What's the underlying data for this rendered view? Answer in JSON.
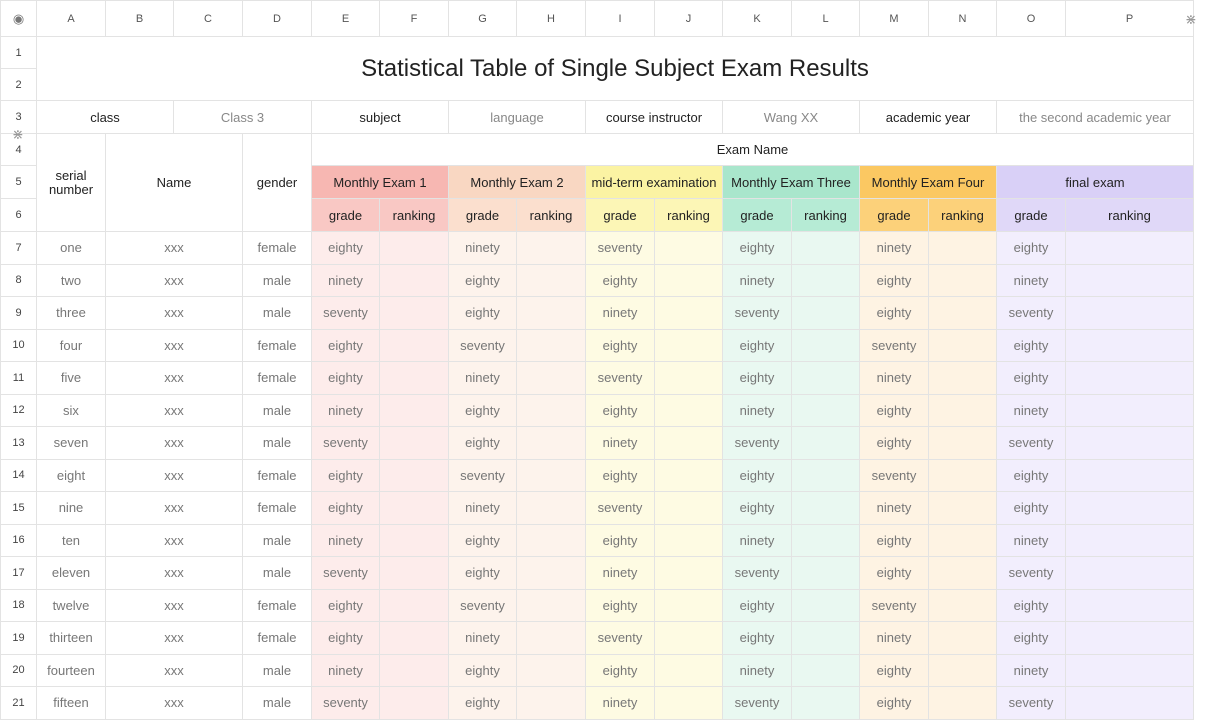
{
  "columns": [
    "A",
    "B",
    "C",
    "D",
    "E",
    "F",
    "G",
    "H",
    "I",
    "J",
    "K",
    "L",
    "M",
    "N",
    "O",
    "P"
  ],
  "row_numbers": [
    "1",
    "2",
    "3",
    "4",
    "5",
    "6",
    "7",
    "8",
    "9",
    "10",
    "11",
    "12",
    "13",
    "14",
    "15",
    "16",
    "17",
    "18",
    "19",
    "20",
    "21"
  ],
  "title": "Statistical Table of Single Subject Exam Results",
  "info": {
    "class_label": "class",
    "class_value": "Class 3",
    "subject_label": "subject",
    "subject_value": "language",
    "instructor_label": "course instructor",
    "instructor_value": "Wang XX",
    "year_label": "academic year",
    "year_value": "the second academic year"
  },
  "headers": {
    "serial": "serial number",
    "name": "Name",
    "gender": "gender",
    "exam_name": "Exam Name",
    "grade": "grade",
    "ranking": "ranking"
  },
  "exams": [
    "Monthly Exam 1",
    "Monthly Exam 2",
    "mid-term examination",
    "Monthly Exam Three",
    "Monthly Exam Four",
    "final exam"
  ],
  "rows": [
    {
      "serial": "one",
      "name": "xxx",
      "gender": "female",
      "grades": [
        "eighty",
        "ninety",
        "seventy",
        "eighty",
        "ninety",
        "eighty"
      ]
    },
    {
      "serial": "two",
      "name": "xxx",
      "gender": "male",
      "grades": [
        "ninety",
        "eighty",
        "eighty",
        "ninety",
        "eighty",
        "ninety"
      ]
    },
    {
      "serial": "three",
      "name": "xxx",
      "gender": "male",
      "grades": [
        "seventy",
        "eighty",
        "ninety",
        "seventy",
        "eighty",
        "seventy"
      ]
    },
    {
      "serial": "four",
      "name": "xxx",
      "gender": "female",
      "grades": [
        "eighty",
        "seventy",
        "eighty",
        "eighty",
        "seventy",
        "eighty"
      ]
    },
    {
      "serial": "five",
      "name": "xxx",
      "gender": "female",
      "grades": [
        "eighty",
        "ninety",
        "seventy",
        "eighty",
        "ninety",
        "eighty"
      ]
    },
    {
      "serial": "six",
      "name": "xxx",
      "gender": "male",
      "grades": [
        "ninety",
        "eighty",
        "eighty",
        "ninety",
        "eighty",
        "ninety"
      ]
    },
    {
      "serial": "seven",
      "name": "xxx",
      "gender": "male",
      "grades": [
        "seventy",
        "eighty",
        "ninety",
        "seventy",
        "eighty",
        "seventy"
      ]
    },
    {
      "serial": "eight",
      "name": "xxx",
      "gender": "female",
      "grades": [
        "eighty",
        "seventy",
        "eighty",
        "eighty",
        "seventy",
        "eighty"
      ]
    },
    {
      "serial": "nine",
      "name": "xxx",
      "gender": "female",
      "grades": [
        "eighty",
        "ninety",
        "seventy",
        "eighty",
        "ninety",
        "eighty"
      ]
    },
    {
      "serial": "ten",
      "name": "xxx",
      "gender": "male",
      "grades": [
        "ninety",
        "eighty",
        "eighty",
        "ninety",
        "eighty",
        "ninety"
      ]
    },
    {
      "serial": "eleven",
      "name": "xxx",
      "gender": "male",
      "grades": [
        "seventy",
        "eighty",
        "ninety",
        "seventy",
        "eighty",
        "seventy"
      ]
    },
    {
      "serial": "twelve",
      "name": "xxx",
      "gender": "female",
      "grades": [
        "eighty",
        "seventy",
        "eighty",
        "eighty",
        "seventy",
        "eighty"
      ]
    },
    {
      "serial": "thirteen",
      "name": "xxx",
      "gender": "female",
      "grades": [
        "eighty",
        "ninety",
        "seventy",
        "eighty",
        "ninety",
        "eighty"
      ]
    },
    {
      "serial": "fourteen",
      "name": "xxx",
      "gender": "male",
      "grades": [
        "ninety",
        "eighty",
        "eighty",
        "ninety",
        "eighty",
        "ninety"
      ]
    },
    {
      "serial": "fifteen",
      "name": "xxx",
      "gender": "male",
      "grades": [
        "seventy",
        "eighty",
        "ninety",
        "seventy",
        "eighty",
        "seventy"
      ]
    }
  ],
  "icons": {
    "corner": "eye-icon",
    "freeze_col": "freeze-column-icon",
    "freeze_row": "freeze-row-icon"
  },
  "colors": {
    "exam1": "#f7b7b2",
    "exam2": "#f9d7c2",
    "midterm": "#fbf3a3",
    "exam3": "#a9e6cc",
    "exam4": "#fbc862",
    "final": "#d9d0f7"
  }
}
